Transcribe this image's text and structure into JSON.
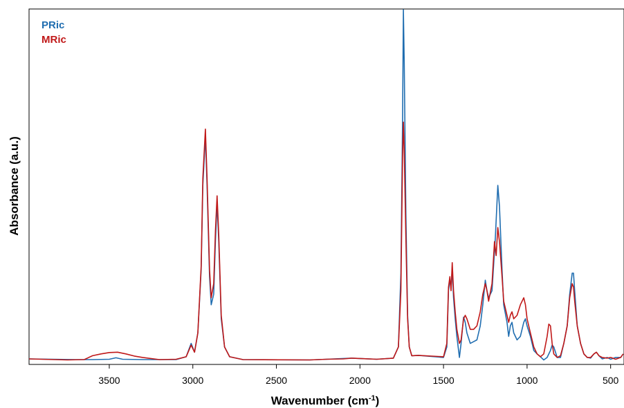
{
  "chart_data": {
    "type": "line",
    "xlabel": "Wavenumber (cm",
    "xlabel_sup": "-1",
    "xlabel_suffix": ")",
    "ylabel": "Absorbance (a.u.)",
    "xlim": [
      3980,
      420
    ],
    "ylim": [
      0,
      1.0
    ],
    "x_ticks": [
      3500,
      3000,
      2500,
      2000,
      1500,
      1000,
      500
    ],
    "x_tick_labels": [
      "3500",
      "3000",
      "2500",
      "2000",
      "1500",
      "1000",
      "500"
    ],
    "legend": {
      "placement": "top-left"
    },
    "series": [
      {
        "name": "PRic",
        "color": "#1f6db0",
        "points": [
          [
            3980,
            0.006
          ],
          [
            3700,
            0.004
          ],
          [
            3600,
            0.004
          ],
          [
            3500,
            0.005
          ],
          [
            3460,
            0.009
          ],
          [
            3420,
            0.005
          ],
          [
            3300,
            0.004
          ],
          [
            3100,
            0.004
          ],
          [
            3040,
            0.012
          ],
          [
            3010,
            0.05
          ],
          [
            2990,
            0.025
          ],
          [
            2970,
            0.08
          ],
          [
            2950,
            0.26
          ],
          [
            2940,
            0.5
          ],
          [
            2925,
            0.64
          ],
          [
            2915,
            0.5
          ],
          [
            2900,
            0.24
          ],
          [
            2890,
            0.16
          ],
          [
            2875,
            0.19
          ],
          [
            2865,
            0.34
          ],
          [
            2855,
            0.45
          ],
          [
            2845,
            0.34
          ],
          [
            2830,
            0.12
          ],
          [
            2810,
            0.04
          ],
          [
            2780,
            0.012
          ],
          [
            2700,
            0.004
          ],
          [
            2300,
            0.003
          ],
          [
            2200,
            0.005
          ],
          [
            2100,
            0.007
          ],
          [
            2050,
            0.008
          ],
          [
            2000,
            0.007
          ],
          [
            1900,
            0.005
          ],
          [
            1800,
            0.008
          ],
          [
            1770,
            0.04
          ],
          [
            1755,
            0.25
          ],
          [
            1745,
            0.68
          ],
          [
            1740,
            1.0
          ],
          [
            1735,
            0.85
          ],
          [
            1725,
            0.42
          ],
          [
            1715,
            0.13
          ],
          [
            1705,
            0.04
          ],
          [
            1690,
            0.015
          ],
          [
            1650,
            0.016
          ],
          [
            1500,
            0.01
          ],
          [
            1480,
            0.04
          ],
          [
            1470,
            0.2
          ],
          [
            1462,
            0.23
          ],
          [
            1455,
            0.21
          ],
          [
            1448,
            0.26
          ],
          [
            1440,
            0.18
          ],
          [
            1430,
            0.12
          ],
          [
            1420,
            0.07
          ],
          [
            1405,
            0.01
          ],
          [
            1395,
            0.05
          ],
          [
            1380,
            0.125
          ],
          [
            1370,
            0.11
          ],
          [
            1360,
            0.08
          ],
          [
            1340,
            0.05
          ],
          [
            1320,
            0.055
          ],
          [
            1300,
            0.06
          ],
          [
            1280,
            0.1
          ],
          [
            1265,
            0.16
          ],
          [
            1250,
            0.23
          ],
          [
            1240,
            0.2
          ],
          [
            1230,
            0.18
          ],
          [
            1210,
            0.2
          ],
          [
            1190,
            0.35
          ],
          [
            1175,
            0.5
          ],
          [
            1165,
            0.44
          ],
          [
            1150,
            0.26
          ],
          [
            1140,
            0.16
          ],
          [
            1120,
            0.11
          ],
          [
            1110,
            0.07
          ],
          [
            1100,
            0.1
          ],
          [
            1090,
            0.11
          ],
          [
            1080,
            0.08
          ],
          [
            1060,
            0.06
          ],
          [
            1040,
            0.07
          ],
          [
            1020,
            0.11
          ],
          [
            1010,
            0.12
          ],
          [
            1000,
            0.1
          ],
          [
            980,
            0.07
          ],
          [
            960,
            0.03
          ],
          [
            940,
            0.02
          ],
          [
            920,
            0.012
          ],
          [
            900,
            0.003
          ],
          [
            880,
            0.01
          ],
          [
            860,
            0.03
          ],
          [
            850,
            0.045
          ],
          [
            840,
            0.04
          ],
          [
            820,
            0.01
          ],
          [
            800,
            0.01
          ],
          [
            780,
            0.05
          ],
          [
            760,
            0.1
          ],
          [
            745,
            0.19
          ],
          [
            730,
            0.25
          ],
          [
            722,
            0.25
          ],
          [
            715,
            0.2
          ],
          [
            700,
            0.1
          ],
          [
            680,
            0.05
          ],
          [
            660,
            0.02
          ],
          [
            640,
            0.01
          ],
          [
            620,
            0.008
          ],
          [
            600,
            0.02
          ],
          [
            585,
            0.025
          ],
          [
            570,
            0.015
          ],
          [
            550,
            0.006
          ],
          [
            520,
            0.01
          ],
          [
            500,
            0.005
          ],
          [
            470,
            0.01
          ],
          [
            440,
            0.01
          ],
          [
            425,
            0.02
          ]
        ]
      },
      {
        "name": "MRic",
        "color": "#c01818",
        "points": [
          [
            3980,
            0.006
          ],
          [
            3750,
            0.003
          ],
          [
            3650,
            0.004
          ],
          [
            3600,
            0.015
          ],
          [
            3550,
            0.02
          ],
          [
            3500,
            0.024
          ],
          [
            3450,
            0.025
          ],
          [
            3400,
            0.02
          ],
          [
            3350,
            0.014
          ],
          [
            3300,
            0.01
          ],
          [
            3200,
            0.004
          ],
          [
            3100,
            0.005
          ],
          [
            3040,
            0.012
          ],
          [
            3010,
            0.045
          ],
          [
            2990,
            0.025
          ],
          [
            2970,
            0.08
          ],
          [
            2950,
            0.27
          ],
          [
            2940,
            0.52
          ],
          [
            2925,
            0.66
          ],
          [
            2915,
            0.52
          ],
          [
            2900,
            0.26
          ],
          [
            2890,
            0.18
          ],
          [
            2875,
            0.22
          ],
          [
            2865,
            0.37
          ],
          [
            2855,
            0.47
          ],
          [
            2845,
            0.36
          ],
          [
            2830,
            0.13
          ],
          [
            2810,
            0.04
          ],
          [
            2780,
            0.012
          ],
          [
            2700,
            0.004
          ],
          [
            2300,
            0.003
          ],
          [
            2200,
            0.005
          ],
          [
            2100,
            0.006
          ],
          [
            2050,
            0.008
          ],
          [
            2000,
            0.007
          ],
          [
            1900,
            0.005
          ],
          [
            1800,
            0.008
          ],
          [
            1770,
            0.04
          ],
          [
            1755,
            0.2
          ],
          [
            1745,
            0.58
          ],
          [
            1740,
            0.68
          ],
          [
            1735,
            0.6
          ],
          [
            1725,
            0.35
          ],
          [
            1715,
            0.12
          ],
          [
            1705,
            0.04
          ],
          [
            1690,
            0.015
          ],
          [
            1650,
            0.016
          ],
          [
            1500,
            0.012
          ],
          [
            1480,
            0.05
          ],
          [
            1470,
            0.21
          ],
          [
            1462,
            0.24
          ],
          [
            1455,
            0.2
          ],
          [
            1448,
            0.28
          ],
          [
            1440,
            0.2
          ],
          [
            1430,
            0.14
          ],
          [
            1420,
            0.09
          ],
          [
            1405,
            0.05
          ],
          [
            1395,
            0.06
          ],
          [
            1380,
            0.12
          ],
          [
            1370,
            0.13
          ],
          [
            1360,
            0.12
          ],
          [
            1340,
            0.09
          ],
          [
            1320,
            0.09
          ],
          [
            1300,
            0.1
          ],
          [
            1280,
            0.14
          ],
          [
            1265,
            0.19
          ],
          [
            1250,
            0.22
          ],
          [
            1240,
            0.2
          ],
          [
            1230,
            0.17
          ],
          [
            1210,
            0.22
          ],
          [
            1195,
            0.34
          ],
          [
            1185,
            0.3
          ],
          [
            1175,
            0.38
          ],
          [
            1165,
            0.34
          ],
          [
            1150,
            0.24
          ],
          [
            1140,
            0.17
          ],
          [
            1120,
            0.13
          ],
          [
            1110,
            0.11
          ],
          [
            1100,
            0.13
          ],
          [
            1090,
            0.14
          ],
          [
            1080,
            0.12
          ],
          [
            1060,
            0.13
          ],
          [
            1040,
            0.16
          ],
          [
            1020,
            0.18
          ],
          [
            1010,
            0.16
          ],
          [
            1000,
            0.12
          ],
          [
            980,
            0.08
          ],
          [
            960,
            0.04
          ],
          [
            940,
            0.02
          ],
          [
            920,
            0.012
          ],
          [
            900,
            0.02
          ],
          [
            880,
            0.07
          ],
          [
            870,
            0.105
          ],
          [
            860,
            0.1
          ],
          [
            850,
            0.05
          ],
          [
            840,
            0.02
          ],
          [
            820,
            0.01
          ],
          [
            800,
            0.015
          ],
          [
            780,
            0.05
          ],
          [
            760,
            0.1
          ],
          [
            745,
            0.18
          ],
          [
            730,
            0.22
          ],
          [
            722,
            0.21
          ],
          [
            715,
            0.17
          ],
          [
            700,
            0.1
          ],
          [
            680,
            0.05
          ],
          [
            660,
            0.02
          ],
          [
            640,
            0.01
          ],
          [
            620,
            0.01
          ],
          [
            600,
            0.02
          ],
          [
            585,
            0.025
          ],
          [
            570,
            0.015
          ],
          [
            550,
            0.01
          ],
          [
            520,
            0.008
          ],
          [
            500,
            0.01
          ],
          [
            470,
            0.005
          ],
          [
            440,
            0.01
          ],
          [
            425,
            0.02
          ]
        ]
      }
    ]
  }
}
